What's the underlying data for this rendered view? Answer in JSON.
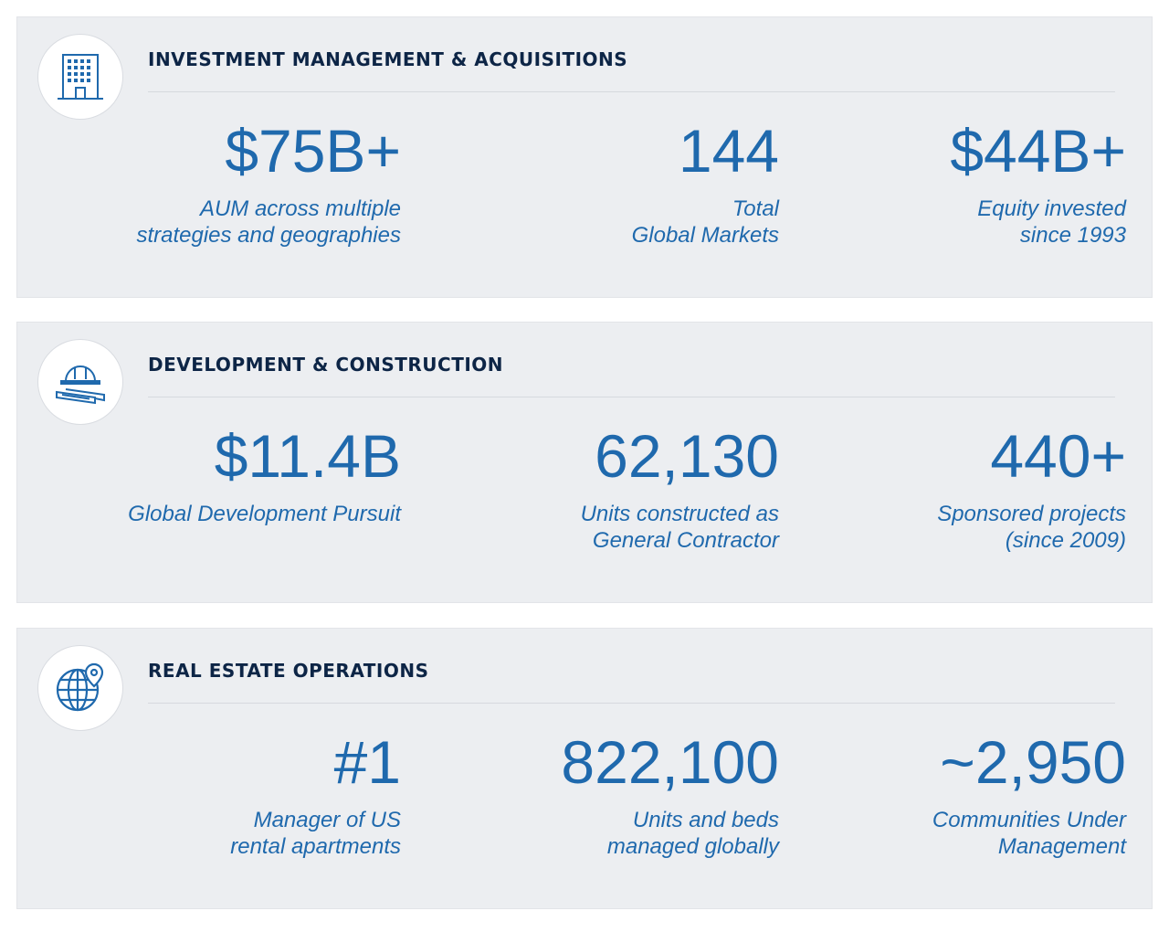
{
  "sections": [
    {
      "title": "INVESTMENT MANAGEMENT & ACQUISITIONS",
      "icon": "office-building-icon",
      "stats": [
        {
          "value": "$75B+",
          "label_line1": "AUM across multiple",
          "label_line2": "strategies and geographies"
        },
        {
          "value": "144",
          "label_line1": "Total",
          "label_line2": "Global Markets"
        },
        {
          "value": "$44B+",
          "label_line1": "Equity invested",
          "label_line2": "since 1993"
        }
      ]
    },
    {
      "title": "DEVELOPMENT & CONSTRUCTION",
      "icon": "hard-hat-blueprints-icon",
      "stats": [
        {
          "value": "$11.4B",
          "label_line1": "Global Development Pursuit",
          "label_line2": ""
        },
        {
          "value": "62,130",
          "label_line1": "Units constructed as",
          "label_line2": "General Contractor"
        },
        {
          "value": "440+",
          "label_line1": "Sponsored projects",
          "label_line2": "(since 2009)"
        }
      ]
    },
    {
      "title": "REAL ESTATE OPERATIONS",
      "icon": "globe-location-pin-icon",
      "stats": [
        {
          "value": "#1",
          "label_line1": "Manager of US",
          "label_line2": "rental apartments"
        },
        {
          "value": "822,100",
          "label_line1": "Units and beds",
          "label_line2": "managed globally"
        },
        {
          "value": "~2,950",
          "label_line1": "Communities Under",
          "label_line2": "Management"
        }
      ]
    }
  ],
  "colors": {
    "accent": "#1f69ad",
    "title": "#0d2546",
    "panel_bg": "#eceef1"
  }
}
